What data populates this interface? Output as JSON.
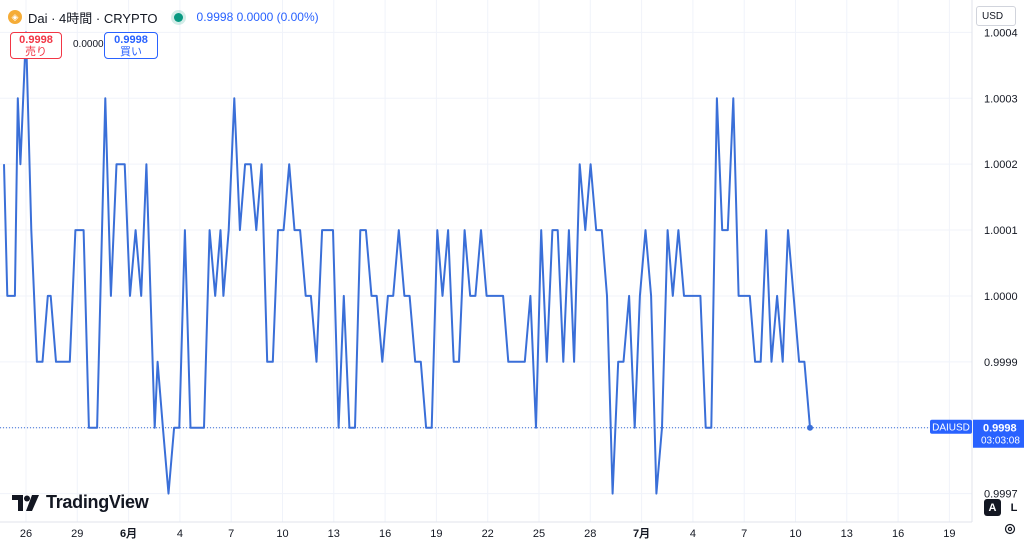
{
  "header": {
    "coin_icon": "dai-coin-icon",
    "title": "Dai · 4時間 · CRYPTO",
    "quote": "0.9998  0.0000 (0.00%)",
    "live_indicator_color": "#089981"
  },
  "order": {
    "sell_price": "0.9998",
    "sell_label": "売り",
    "spread": "0.0000",
    "buy_price": "0.9998",
    "buy_label": "買い"
  },
  "currency": "USD",
  "logo": {
    "text": "TradingView",
    "icon": "tradingview-logo-icon"
  },
  "scale_buttons": {
    "auto": "A",
    "log": "L",
    "settings_icon": "gear-icon"
  },
  "price_tag": {
    "symbol": "DAIUSD",
    "price": "0.9998",
    "countdown": "03:03:08"
  },
  "chart_data": {
    "type": "line",
    "series_color": "#3a6fd8",
    "ylim": [
      0.99966,
      1.00044
    ],
    "yticks": [
      "1.0004",
      "1.0003",
      "1.0002",
      "1.0001",
      "1.0000",
      "0.9999",
      "0.9998",
      "0.9997"
    ],
    "ytick_values": [
      1.0004,
      1.0003,
      1.0002,
      1.0001,
      1.0,
      0.9999,
      0.9998,
      0.9997
    ],
    "xlim": [
      25.5,
      50.8
    ],
    "xticks": [
      {
        "label": "26",
        "day": 26
      },
      {
        "label": "29",
        "day": 29
      },
      {
        "label": "6月",
        "day": 32
      },
      {
        "label": "4",
        "day": 35
      },
      {
        "label": "7",
        "day": 38
      },
      {
        "label": "10",
        "day": 41
      },
      {
        "label": "13",
        "day": 44
      },
      {
        "label": "16",
        "day": 47
      },
      {
        "label": "19",
        "day": 50
      },
      {
        "label": "22",
        "day": 53
      },
      {
        "label": "25",
        "day": 56
      },
      {
        "label": "28",
        "day": 59
      },
      {
        "label": "7月",
        "day": 62
      },
      {
        "label": "4",
        "day": 65
      },
      {
        "label": "7",
        "day": 68
      },
      {
        "label": "10",
        "day": 71
      },
      {
        "label": "13",
        "day": 74
      },
      {
        "label": "16",
        "day": 77
      },
      {
        "label": "19",
        "day": 80
      }
    ],
    "last_price": 0.9998,
    "points": [
      [
        25.5,
        1.0002
      ],
      [
        25.6,
        1.0
      ],
      [
        25.83,
        1.0
      ],
      [
        25.92,
        1.0003
      ],
      [
        26.0,
        1.0002
      ],
      [
        26.17,
        1.0004
      ],
      [
        26.33,
        1.0001
      ],
      [
        26.5,
        0.9999
      ],
      [
        26.67,
        0.9999
      ],
      [
        26.83,
        1.0
      ],
      [
        26.92,
        1.0
      ],
      [
        27.08,
        0.9999
      ],
      [
        27.17,
        0.9999
      ],
      [
        27.33,
        0.9999
      ],
      [
        27.5,
        0.9999
      ],
      [
        27.67,
        1.0001
      ],
      [
        27.92,
        1.0001
      ],
      [
        28.08,
        0.9998
      ],
      [
        28.33,
        0.9998
      ],
      [
        28.58,
        1.0003
      ],
      [
        28.75,
        1.0
      ],
      [
        28.92,
        1.0002
      ],
      [
        29.08,
        1.0002
      ],
      [
        29.17,
        1.0002
      ],
      [
        29.33,
        1.0
      ],
      [
        29.5,
        1.0001
      ],
      [
        29.67,
        1.0
      ],
      [
        29.83,
        1.0002
      ],
      [
        30.08,
        0.9998
      ],
      [
        30.17,
        0.9999
      ],
      [
        30.33,
        0.9998
      ],
      [
        30.5,
        0.9997
      ],
      [
        30.67,
        0.9998
      ],
      [
        30.83,
        0.9998
      ],
      [
        31.0,
        1.0001
      ],
      [
        31.17,
        0.9998
      ],
      [
        31.33,
        0.9998
      ],
      [
        31.58,
        0.9998
      ],
      [
        31.75,
        1.0001
      ],
      [
        31.92,
        1.0
      ],
      [
        32.08,
        1.0001
      ],
      [
        32.17,
        1.0
      ],
      [
        32.33,
        1.0001
      ],
      [
        32.5,
        1.0003
      ],
      [
        32.67,
        1.0001
      ],
      [
        32.83,
        1.0002
      ],
      [
        33.0,
        1.0002
      ],
      [
        33.17,
        1.0001
      ],
      [
        33.33,
        1.0002
      ],
      [
        33.5,
        0.9999
      ],
      [
        33.67,
        0.9999
      ],
      [
        33.83,
        1.0001
      ],
      [
        34.0,
        1.0001
      ],
      [
        34.17,
        1.0002
      ],
      [
        34.33,
        1.0001
      ],
      [
        34.5,
        1.0001
      ],
      [
        34.67,
        1.0
      ],
      [
        34.83,
        1.0
      ],
      [
        35.0,
        0.9999
      ],
      [
        35.17,
        1.0001
      ],
      [
        35.33,
        1.0001
      ],
      [
        35.5,
        1.0001
      ],
      [
        35.67,
        0.9998
      ],
      [
        35.83,
        1.0
      ],
      [
        36.0,
        0.9998
      ],
      [
        36.17,
        0.9998
      ],
      [
        36.33,
        1.0001
      ],
      [
        36.5,
        1.0001
      ],
      [
        36.67,
        1.0
      ],
      [
        36.83,
        1.0
      ],
      [
        37.0,
        0.9999
      ],
      [
        37.17,
        1.0
      ],
      [
        37.33,
        1.0
      ],
      [
        37.5,
        1.0001
      ],
      [
        37.67,
        1.0
      ],
      [
        37.83,
        1.0
      ],
      [
        38.0,
        0.9999
      ],
      [
        38.17,
        0.9999
      ],
      [
        38.33,
        0.9998
      ],
      [
        38.5,
        0.9998
      ],
      [
        38.67,
        1.0001
      ],
      [
        38.83,
        1.0
      ],
      [
        39.0,
        1.0001
      ],
      [
        39.17,
        0.9999
      ],
      [
        39.33,
        0.9999
      ],
      [
        39.5,
        1.0001
      ],
      [
        39.67,
        1.0
      ],
      [
        39.83,
        1.0
      ],
      [
        40.0,
        1.0001
      ],
      [
        40.17,
        1.0
      ],
      [
        40.33,
        1.0
      ],
      [
        40.5,
        1.0
      ],
      [
        40.67,
        1.0
      ],
      [
        40.83,
        0.9999
      ],
      [
        41.0,
        0.9999
      ],
      [
        41.17,
        0.9999
      ],
      [
        41.33,
        0.9999
      ],
      [
        41.5,
        1.0
      ],
      [
        41.67,
        0.9998
      ],
      [
        41.83,
        1.0001
      ],
      [
        42.0,
        0.9999
      ],
      [
        42.17,
        1.0001
      ],
      [
        42.33,
        1.0001
      ],
      [
        42.5,
        0.9999
      ],
      [
        42.67,
        1.0001
      ],
      [
        42.83,
        0.9999
      ],
      [
        43.0,
        1.0002
      ],
      [
        43.17,
        1.0001
      ],
      [
        43.33,
        1.0002
      ],
      [
        43.5,
        1.0001
      ],
      [
        43.67,
        1.0001
      ],
      [
        43.83,
        1.0
      ],
      [
        44.0,
        0.9997
      ],
      [
        44.17,
        0.9999
      ],
      [
        44.33,
        0.9999
      ],
      [
        44.5,
        1.0
      ],
      [
        44.67,
        0.9998
      ],
      [
        44.83,
        1.0
      ],
      [
        45.0,
        1.0001
      ],
      [
        45.17,
        1.0
      ],
      [
        45.33,
        0.9997
      ],
      [
        45.5,
        0.9998
      ],
      [
        45.67,
        1.0001
      ],
      [
        45.83,
        1.0
      ],
      [
        46.0,
        1.0001
      ],
      [
        46.17,
        1.0
      ],
      [
        46.33,
        1.0
      ],
      [
        46.5,
        1.0
      ],
      [
        46.67,
        1.0
      ],
      [
        46.83,
        0.9998
      ],
      [
        47.0,
        0.9998
      ],
      [
        47.17,
        1.0003
      ],
      [
        47.33,
        1.0001
      ],
      [
        47.5,
        1.0001
      ],
      [
        47.67,
        1.0003
      ],
      [
        47.83,
        1.0
      ],
      [
        48.0,
        1.0
      ],
      [
        48.17,
        1.0
      ],
      [
        48.33,
        0.9999
      ],
      [
        48.5,
        0.9999
      ],
      [
        48.67,
        1.0001
      ],
      [
        48.83,
        0.9999
      ],
      [
        49.0,
        1.0
      ],
      [
        49.17,
        0.9999
      ],
      [
        49.33,
        1.0001
      ],
      [
        49.5,
        1.0
      ],
      [
        49.67,
        0.9999
      ],
      [
        49.83,
        0.9999
      ],
      [
        50.0,
        0.9998
      ]
    ]
  }
}
